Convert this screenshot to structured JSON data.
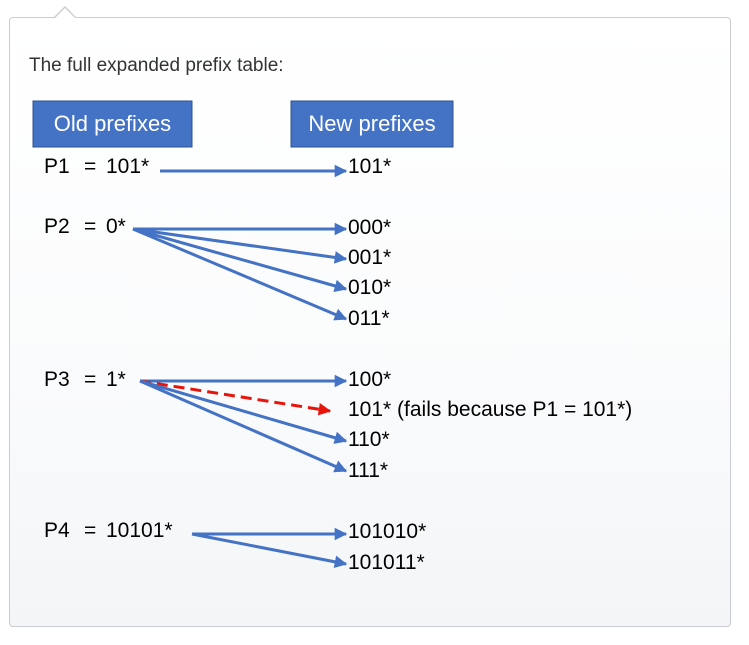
{
  "intro_text": "The full expanded prefix table:",
  "colors": {
    "header_fill": "#4472c4",
    "header_border": "#2f528f",
    "arrow": "#4472c4",
    "failed_arrow": "#e8140c"
  },
  "headers": {
    "old": "Old prefixes",
    "new": "New prefixes"
  },
  "groups": [
    {
      "name": "P1",
      "eq": "=",
      "prefix": "101*",
      "targets": [
        {
          "text": "101*",
          "failed": false
        }
      ]
    },
    {
      "name": "P2",
      "eq": "=",
      "prefix": "0*",
      "targets": [
        {
          "text": "000*",
          "failed": false
        },
        {
          "text": "001*",
          "failed": false
        },
        {
          "text": "010*",
          "failed": false
        },
        {
          "text": "011*",
          "failed": false
        }
      ]
    },
    {
      "name": "P3",
      "eq": "=",
      "prefix": "1*",
      "targets": [
        {
          "text": "100*",
          "failed": false
        },
        {
          "text": "101* (fails because P1 = 101*)",
          "failed": true
        },
        {
          "text": "110*",
          "failed": false
        },
        {
          "text": "111*",
          "failed": false
        }
      ]
    },
    {
      "name": "P4",
      "eq": "=",
      "prefix": "10101*",
      "targets": [
        {
          "text": "101010*",
          "failed": false
        },
        {
          "text": "101011*",
          "failed": false
        }
      ]
    }
  ]
}
